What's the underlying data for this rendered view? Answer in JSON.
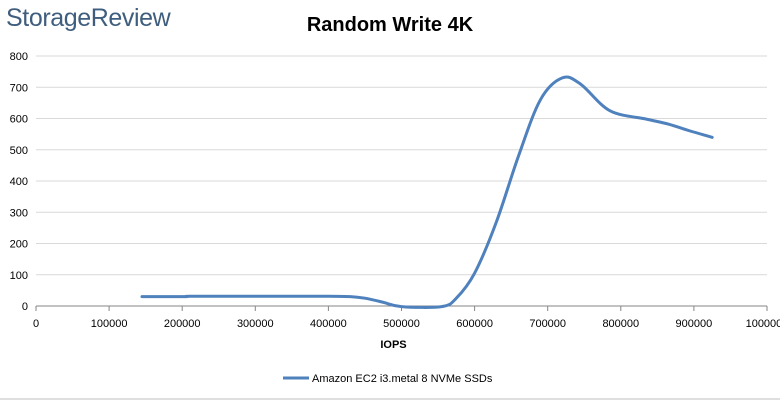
{
  "brand": "StorageReview",
  "chart_data": {
    "type": "line",
    "title": "Random Write 4K",
    "xlabel": "IOPS",
    "ylabel": "",
    "xlim": [
      0,
      1000000
    ],
    "ylim": [
      0,
      800
    ],
    "xticks": [
      0,
      100000,
      200000,
      300000,
      400000,
      500000,
      600000,
      700000,
      800000,
      900000,
      1000000
    ],
    "xtick_labels": [
      "0",
      "100000",
      "200000",
      "300000",
      "400000",
      "500000",
      "600000",
      "700000",
      "800000",
      "900000",
      "1000000"
    ],
    "yticks": [
      0,
      100,
      200,
      300,
      400,
      500,
      600,
      700,
      800
    ],
    "ytick_labels": [
      "0",
      "100",
      "200",
      "300",
      "400",
      "500",
      "600",
      "700",
      "800"
    ],
    "grid": "horizontal",
    "legend_position": "bottom",
    "series": [
      {
        "name": "Amazon EC2 i3.metal 8 NVMe SSDs",
        "color": "#4f81bd",
        "points": [
          [
            145000,
            30
          ],
          [
            205000,
            30
          ],
          [
            210000,
            31
          ],
          [
            300000,
            31
          ],
          [
            400000,
            31
          ],
          [
            430000,
            30
          ],
          [
            450000,
            25
          ],
          [
            475000,
            12
          ],
          [
            500000,
            -2
          ],
          [
            555000,
            -2
          ],
          [
            575000,
            25
          ],
          [
            600000,
            105
          ],
          [
            630000,
            270
          ],
          [
            660000,
            480
          ],
          [
            690000,
            660
          ],
          [
            720000,
            730
          ],
          [
            745000,
            710
          ],
          [
            785000,
            625
          ],
          [
            835000,
            598
          ],
          [
            865000,
            582
          ],
          [
            895000,
            560
          ],
          [
            925000,
            540
          ]
        ]
      }
    ]
  }
}
